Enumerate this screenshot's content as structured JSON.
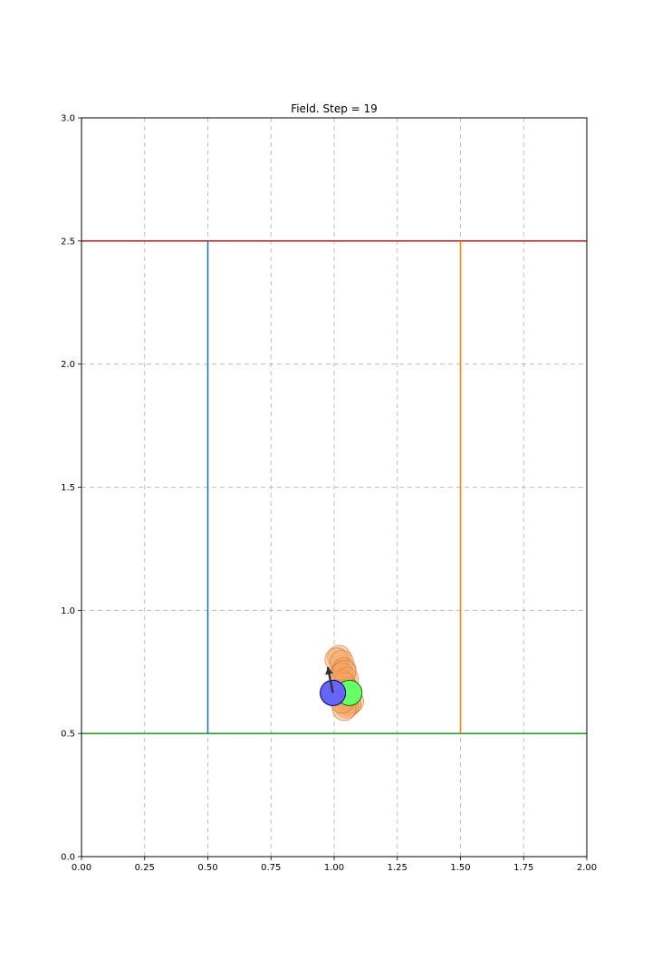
{
  "chart_data": {
    "type": "scatter",
    "title": "Field. Step = 19",
    "xlabel": "",
    "ylabel": "",
    "xlim": [
      0.0,
      2.0
    ],
    "ylim": [
      0.0,
      3.0
    ],
    "x_ticks": [
      "0.00",
      "0.25",
      "0.50",
      "0.75",
      "1.00",
      "1.25",
      "1.50",
      "1.75",
      "2.00"
    ],
    "y_ticks": [
      "0.0",
      "0.5",
      "1.0",
      "1.5",
      "2.0",
      "2.5",
      "3.0"
    ],
    "grid": true,
    "lines": [
      {
        "x": [
          0.0,
          2.0
        ],
        "y": [
          2.5,
          2.5
        ],
        "color": "#d62728"
      },
      {
        "x": [
          0.0,
          2.0
        ],
        "y": [
          0.5,
          0.5
        ],
        "color": "#2ca02c"
      },
      {
        "x": [
          0.5,
          0.5
        ],
        "y": [
          0.5,
          2.5
        ],
        "color": "#1f77b4"
      },
      {
        "x": [
          1.5,
          1.5
        ],
        "y": [
          0.5,
          2.5
        ],
        "color": "#ff7f0e"
      }
    ],
    "trail_points": [
      {
        "x": 1.02,
        "y": 0.81
      },
      {
        "x": 1.01,
        "y": 0.8
      },
      {
        "x": 1.03,
        "y": 0.79
      },
      {
        "x": 1.04,
        "y": 0.76
      },
      {
        "x": 1.03,
        "y": 0.74
      },
      {
        "x": 1.05,
        "y": 0.72
      },
      {
        "x": 1.04,
        "y": 0.7
      },
      {
        "x": 1.05,
        "y": 0.68
      },
      {
        "x": 1.06,
        "y": 0.66
      },
      {
        "x": 1.05,
        "y": 0.64
      },
      {
        "x": 1.07,
        "y": 0.63
      },
      {
        "x": 1.06,
        "y": 0.62
      },
      {
        "x": 1.05,
        "y": 0.61
      },
      {
        "x": 1.04,
        "y": 0.6
      },
      {
        "x": 1.03,
        "y": 0.63
      },
      {
        "x": 1.02,
        "y": 0.67
      },
      {
        "x": 1.03,
        "y": 0.71
      },
      {
        "x": 1.04,
        "y": 0.75
      }
    ],
    "trail_color": "#f4a460",
    "agents": [
      {
        "x": 1.06,
        "y": 0.665,
        "color": "#66ff66",
        "edge": "#116611"
      },
      {
        "x": 0.995,
        "y": 0.665,
        "color": "#6666ff",
        "edge": "#000066"
      }
    ],
    "arrow": {
      "x0": 0.995,
      "y0": 0.665,
      "x1": 0.975,
      "y1": 0.77,
      "color": "#333333"
    }
  }
}
